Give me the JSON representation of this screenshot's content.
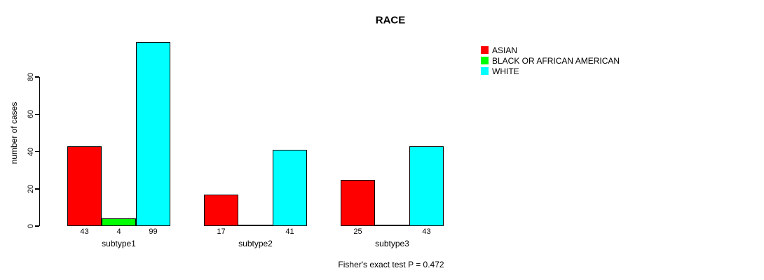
{
  "chart_data": {
    "type": "bar",
    "title": "RACE",
    "ylabel": "number of cases",
    "xlabel": "",
    "ylim": [
      0,
      80
    ],
    "yticks": [
      0,
      20,
      40,
      60,
      80
    ],
    "grid": false,
    "legend_position": "right-of-plot",
    "categories": [
      "subtype1",
      "subtype2",
      "subtype3"
    ],
    "series": [
      {
        "name": "ASIAN",
        "color": "#ff0000",
        "values": [
          43,
          17,
          25
        ]
      },
      {
        "name": "BLACK OR AFRICAN AMERICAN",
        "color": "#00ff00",
        "values": [
          4,
          0,
          0
        ]
      },
      {
        "name": "WHITE",
        "color": "#00ffff",
        "values": [
          99,
          41,
          43
        ]
      }
    ],
    "bar_value_labels": [
      [
        "43",
        "4",
        "99"
      ],
      [
        "17",
        "",
        "41"
      ],
      [
        "25",
        "",
        "43"
      ]
    ],
    "annotation": "Fisher's exact test P = 0.472",
    "colors": {
      "axis": "#000000",
      "bar_border": "#000000",
      "text": "#000000",
      "background": "#ffffff"
    }
  }
}
